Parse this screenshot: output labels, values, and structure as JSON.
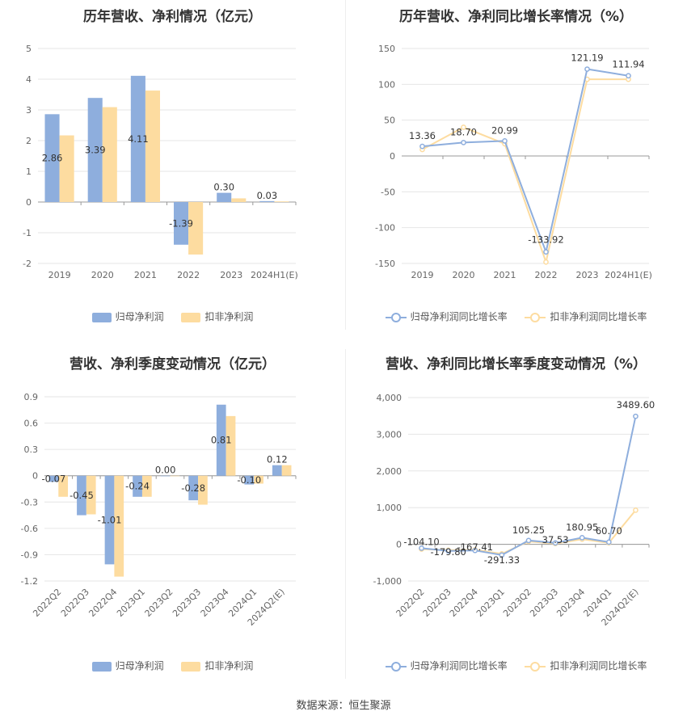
{
  "colors": {
    "blue": "#8eaedd",
    "orange": "#fddca0",
    "grid": "#e6e6e6",
    "axis": "#999999"
  },
  "source": "数据来源：恒生聚源",
  "chart_data": [
    {
      "type": "bar",
      "title": "历年营收、净利情况（亿元）",
      "categories": [
        "2019",
        "2020",
        "2021",
        "2022",
        "2023",
        "2024H1(E)"
      ],
      "series": [
        {
          "name": "归母净利润",
          "values": [
            2.86,
            3.39,
            4.11,
            -1.39,
            0.3,
            0.03
          ],
          "labels": [
            "2.86",
            "3.39",
            "4.11",
            "-1.39",
            "0.30",
            "0.03"
          ]
        },
        {
          "name": "扣非净利润",
          "values": [
            2.17,
            3.09,
            3.63,
            -1.71,
            0.12,
            0.02
          ]
        }
      ],
      "ylim": [
        -2,
        5
      ],
      "yticks": [
        "5",
        "4",
        "3",
        "2",
        "1",
        "0",
        "-1",
        "-2"
      ],
      "grid": true,
      "legend": "bottom"
    },
    {
      "type": "line",
      "title": "历年营收、净利同比增长率情况（%）",
      "categories": [
        "2019",
        "2020",
        "2021",
        "2022",
        "2023",
        "2024H1(E)"
      ],
      "series": [
        {
          "name": "归母净利润同比增长率",
          "values": [
            13.36,
            18.7,
            20.99,
            -133.92,
            121.19,
            111.94
          ],
          "labels": [
            "13.36",
            "18.70",
            "20.99",
            "-133.92",
            "121.19",
            "111.94"
          ]
        },
        {
          "name": "扣非净利润同比增长率",
          "values": [
            9,
            40,
            17,
            -148,
            107,
            107
          ]
        }
      ],
      "ylim": [
        -150,
        150
      ],
      "yticks": [
        "150",
        "100",
        "50",
        "0",
        "-50",
        "-100",
        "-150"
      ],
      "grid": true,
      "legend": "bottom"
    },
    {
      "type": "bar",
      "title": "营收、净利季度变动情况（亿元）",
      "categories": [
        "2022Q2",
        "2022Q3",
        "2022Q4",
        "2023Q1",
        "2023Q2",
        "2023Q3",
        "2023Q4",
        "2024Q1",
        "2024Q2(E)"
      ],
      "series": [
        {
          "name": "归母净利润",
          "values": [
            -0.07,
            -0.45,
            -1.01,
            -0.24,
            0.0,
            -0.28,
            0.81,
            -0.1,
            0.12
          ],
          "labels": [
            "-0.07",
            "-0.45",
            "-1.01",
            "-0.24",
            "0.00",
            "-0.28",
            "0.81",
            "-0.10",
            "0.12"
          ]
        },
        {
          "name": "扣非净利润",
          "values": [
            -0.24,
            -0.44,
            -1.15,
            -0.24,
            0.0,
            -0.33,
            0.68,
            -0.09,
            0.12
          ]
        }
      ],
      "ylim": [
        -1.2,
        0.9
      ],
      "yticks": [
        "0.9",
        "0.6",
        "0.3",
        "0",
        "-0.3",
        "-0.6",
        "-0.9",
        "-1.2"
      ],
      "grid": true,
      "legend": "bottom"
    },
    {
      "type": "line",
      "title": "营收、净利同比增长率季度变动情况（%）",
      "categories": [
        "2022Q2",
        "2022Q3",
        "2022Q4",
        "2023Q1",
        "2023Q2",
        "2023Q3",
        "2023Q4",
        "2024Q1",
        "2024Q2(E)"
      ],
      "series": [
        {
          "name": "归母净利润同比增长率",
          "values": [
            -104.1,
            -179.8,
            -167.41,
            -291.33,
            105.25,
            37.53,
            180.95,
            60.7,
            3489.6
          ],
          "labels": [
            "-104.10",
            "-179.80",
            "-167.41",
            "-291.33",
            "105.25",
            "37.53",
            "180.95",
            "60.70",
            "3489.60"
          ]
        },
        {
          "name": "扣非净利润同比增长率",
          "values": [
            -130,
            -160,
            -150,
            -260,
            80,
            20,
            140,
            40,
            930
          ]
        }
      ],
      "ylim": [
        -1000,
        4000
      ],
      "yticks": [
        "4,000",
        "3,000",
        "2,000",
        "1,000",
        "0",
        "-1,000"
      ],
      "grid": true,
      "legend": "bottom"
    }
  ]
}
